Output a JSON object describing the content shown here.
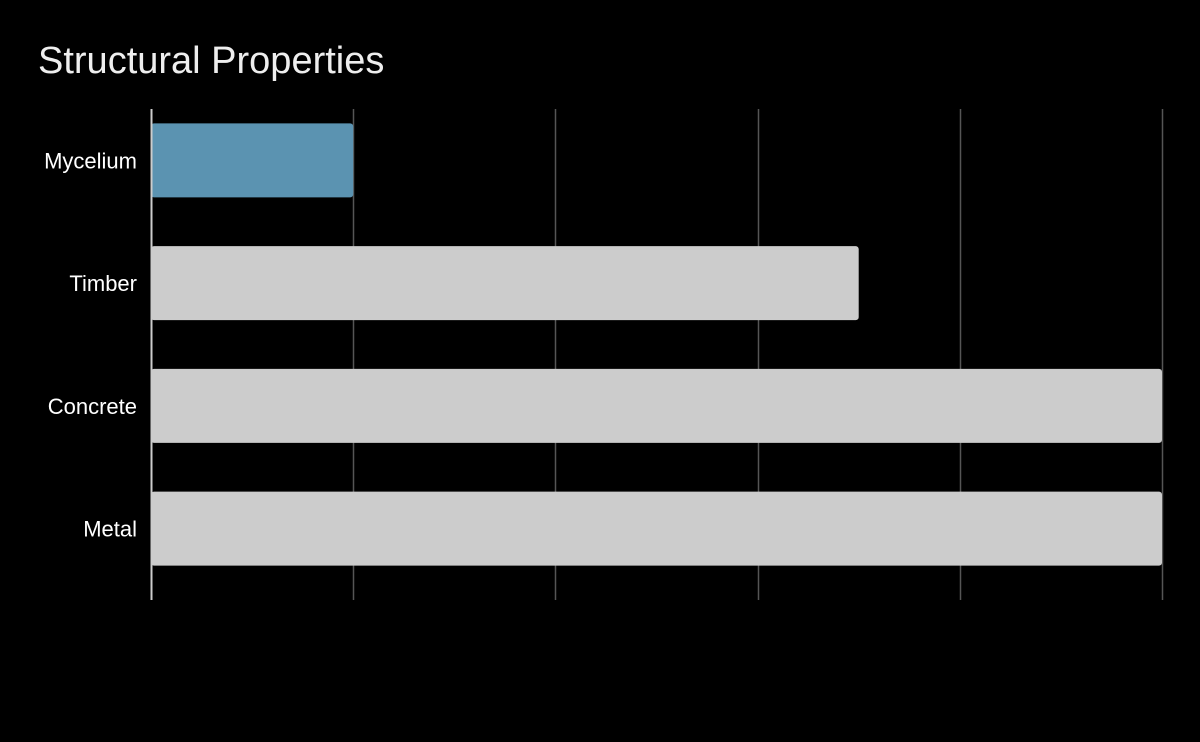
{
  "chart_data": {
    "type": "bar",
    "orientation": "horizontal",
    "title": "Structural Properties",
    "xlabel": "",
    "ylabel": "",
    "categories": [
      "Mycelium",
      "Timber",
      "Concrete",
      "Metal"
    ],
    "values": [
      1,
      3.5,
      5,
      5
    ],
    "xlim": [
      0,
      5
    ],
    "x_tick_labels_visible": false,
    "grid": "vertical",
    "legend": "none",
    "highlight_index": 0,
    "colors": {
      "background": "#000000",
      "highlight": "#5b93b1",
      "bar": "#cccccc",
      "grid": "#555555",
      "axis": "#cccccc",
      "text": "#ffffff",
      "title": "#eeeeee"
    }
  }
}
